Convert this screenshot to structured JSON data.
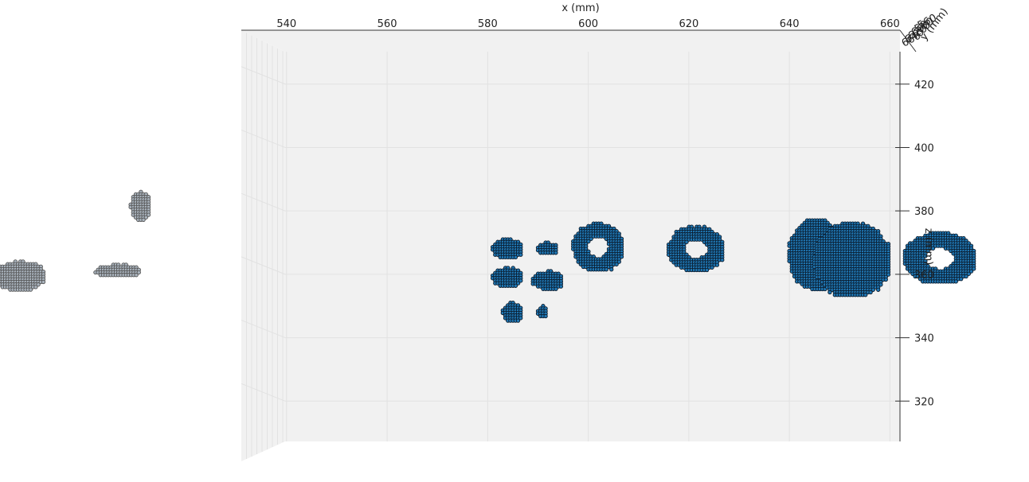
{
  "chart_data": {
    "type": "scatter",
    "view": "3d-front",
    "xlabel": "x (mm)",
    "ylabel": "y (mm)",
    "zlabel": "z (mm)",
    "x_ticks": [
      540,
      560,
      580,
      600,
      620,
      640,
      660
    ],
    "y_ticks": [
      560,
      580,
      600,
      620,
      640,
      660
    ],
    "z_ticks": [
      320,
      340,
      360,
      380,
      400,
      420
    ],
    "xlim": [
      531,
      662
    ],
    "zlim": [
      301,
      437
    ],
    "grid": true,
    "series": [
      {
        "color": "#1f77b4",
        "edge_color": "#0b1a2a",
        "clusters": [
          {
            "x": [
              581,
              587
            ],
            "z": [
              365,
              371
            ]
          },
          {
            "x": [
              590,
              594
            ],
            "z": [
              366,
              370
            ]
          },
          {
            "x": [
              581,
              587
            ],
            "z": [
              356,
              362
            ]
          },
          {
            "x": [
              589,
              595
            ],
            "z": [
              355,
              361
            ]
          },
          {
            "x": [
              583,
              587
            ],
            "z": [
              345,
              351
            ]
          },
          {
            "x": [
              590,
              592
            ],
            "z": [
              346,
              350
            ]
          },
          {
            "x": [
              597,
              607
            ],
            "z": [
              361,
              376
            ],
            "hole": true
          },
          {
            "x": [
              616,
              627
            ],
            "z": [
              361,
              375
            ],
            "hole": true
          },
          {
            "x": [
              640,
              651
            ],
            "z": [
              355,
              377
            ]
          },
          {
            "x": [
              645,
              660
            ],
            "z": [
              353,
              376
            ]
          },
          {
            "x": [
              663,
              677
            ],
            "z": [
              357,
              373
            ],
            "hole": true
          }
        ]
      },
      {
        "color": "#a9b3bd",
        "edge_color": "#555555",
        "clusters": [
          {
            "x": [
              482,
              492
            ],
            "z": [
              355,
              364
            ]
          },
          {
            "x": [
              502,
              511
            ],
            "z": [
              359,
              363
            ]
          },
          {
            "x": [
              509,
              513
            ],
            "z": [
              377,
              386
            ]
          }
        ]
      }
    ]
  }
}
